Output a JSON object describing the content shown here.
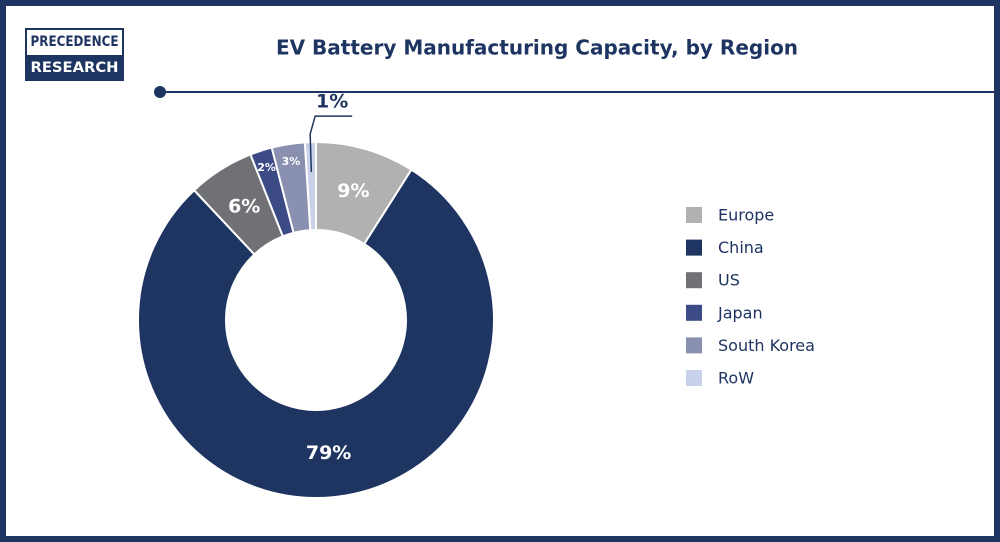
{
  "logo": [
    "PRECEDENCE",
    "RESEARCH"
  ],
  "chart_data": {
    "type": "donut",
    "title": "EV Battery Manufacturing Capacity, by Region",
    "categories": [
      "Europe",
      "China",
      "US",
      "Japan",
      "South Korea",
      "RoW"
    ],
    "values": [
      9,
      79,
      6,
      2,
      3,
      1
    ],
    "value_labels": [
      "9%",
      "79%",
      "6%",
      "2%",
      "3%",
      "1%"
    ],
    "colors": [
      "#b1b1b1",
      "#1e3461",
      "#6f7174",
      "#3c4a86",
      "#8a90b0",
      "#c9d1ea"
    ],
    "legend": "right"
  }
}
